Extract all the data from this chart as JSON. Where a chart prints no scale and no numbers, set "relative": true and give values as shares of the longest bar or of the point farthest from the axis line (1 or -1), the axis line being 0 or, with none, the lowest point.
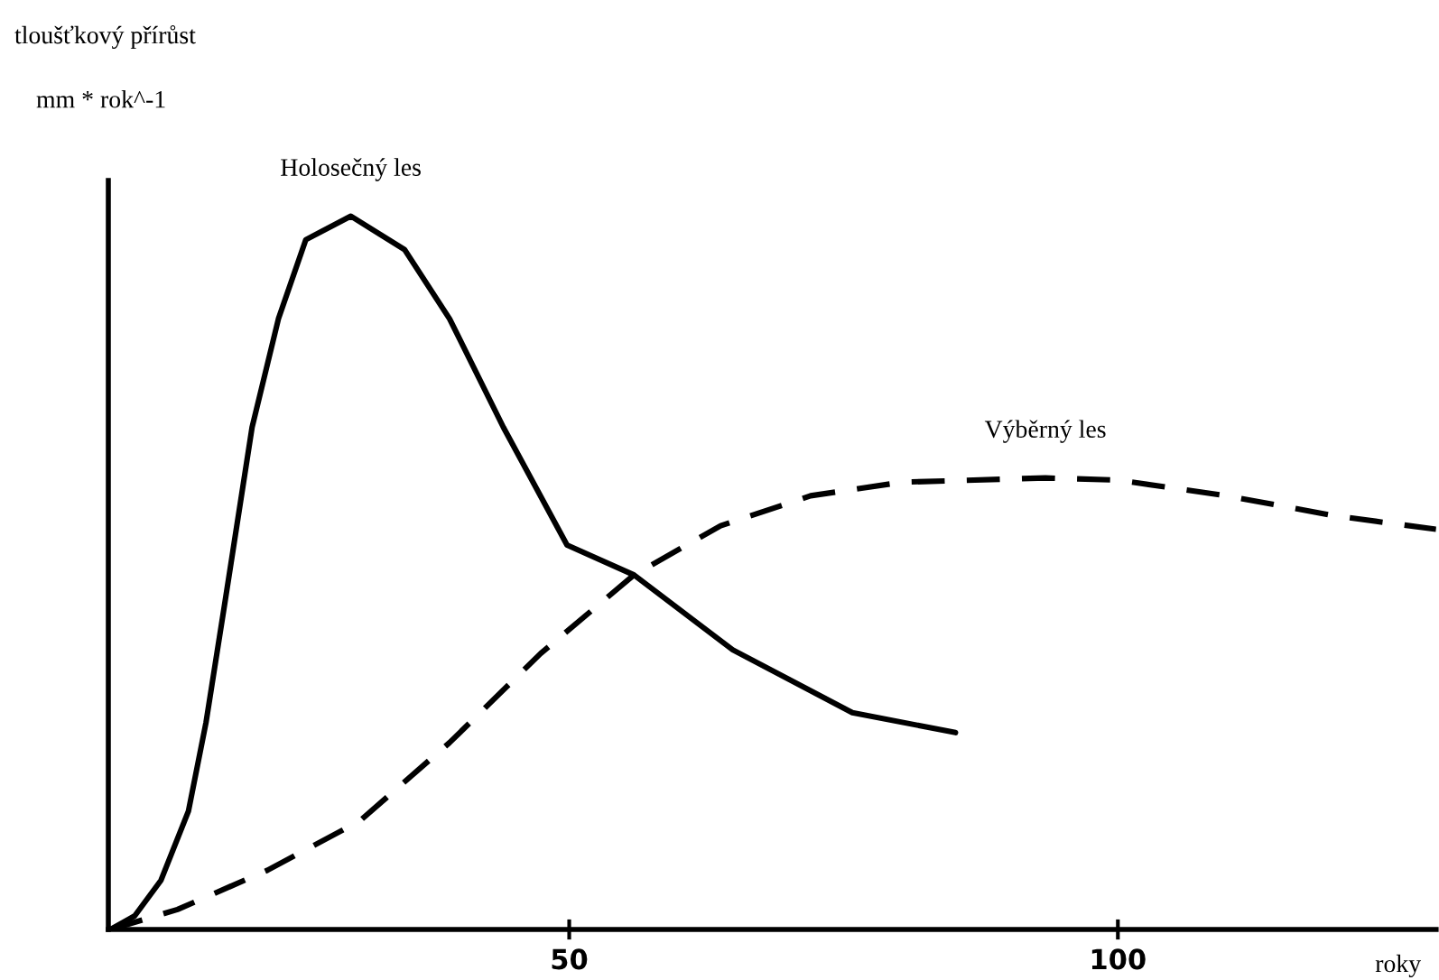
{
  "chart_data": {
    "type": "line",
    "relative": true,
    "annotations": [
      "tloušťkový přírůst",
      "mm * rok^-1"
    ],
    "xlabel": "roky",
    "xlim": [
      8,
      129
    ],
    "xticks": [
      50,
      100
    ],
    "tick_labels": "x",
    "grid": false,
    "legend": false,
    "marker": "none",
    "series": [
      {
        "name": "Holosečný les",
        "color": "#000000",
        "line_style": "solid",
        "x": [
          8.2,
          10.4,
          12.8,
          15.3,
          16.9,
          18.6,
          21.1,
          23.5,
          26,
          30.1,
          35,
          39.1,
          44,
          49.8,
          55.9,
          64.9,
          75.8,
          85.2
        ],
        "values": [
          0,
          0.019,
          0.069,
          0.166,
          0.29,
          0.456,
          0.704,
          0.856,
          0.967,
          1,
          0.953,
          0.856,
          0.704,
          0.539,
          0.497,
          0.392,
          0.304,
          0.276
        ]
      },
      {
        "name": "Výběrný les",
        "color": "#000000",
        "line_style": "dashed",
        "x": [
          8.2,
          14.3,
          22.5,
          30.9,
          39.1,
          47.4,
          55.9,
          63.8,
          72,
          80.3,
          93.4,
          100,
          109.9,
          119.7,
          129
        ],
        "values": [
          0,
          0.028,
          0.083,
          0.152,
          0.262,
          0.387,
          0.497,
          0.566,
          0.608,
          0.627,
          0.633,
          0.63,
          0.608,
          0.58,
          0.561
        ]
      }
    ]
  }
}
